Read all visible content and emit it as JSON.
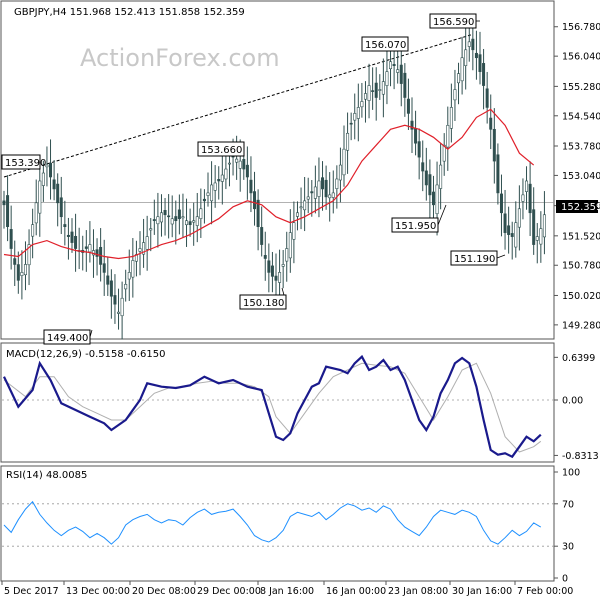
{
  "header": {
    "title": "GBPJPY,H4  151.968 152.413 151.858 152.359",
    "watermark": "ActionForex.com"
  },
  "chart_data": {
    "type": "candlestick",
    "symbol": "GBPJPY",
    "timeframe": "H4",
    "ohlc": {
      "open": 151.968,
      "high": 152.413,
      "low": 151.858,
      "close": 152.359
    },
    "last_price_label": "152.359",
    "price_axis": {
      "ticks": [
        156.78,
        156.04,
        155.28,
        154.54,
        153.78,
        153.04,
        152.28,
        151.52,
        150.78,
        150.02,
        149.28
      ],
      "tick_labels": [
        "156.780",
        "156.040",
        "155.280",
        "154.540",
        "153.780",
        "153.040",
        "152.280",
        "151.520",
        "150.780",
        "150.020",
        "149.280"
      ],
      "ylim": [
        149.0,
        157.0
      ]
    },
    "x_axis_labels": [
      "5 Dec 2017",
      "13 Dec 00:00",
      "20 Dec 08:00",
      "29 Dec 00:00",
      "8 Jan 16:00",
      "16 Jan 00:00",
      "23 Jan 08:00",
      "30 Jan 16:00",
      "7 Feb 00:00"
    ],
    "annotations": [
      "153.390",
      "153.660",
      "150.180",
      "149.400",
      "156.070",
      "156.590",
      "151.950",
      "151.190"
    ],
    "close_path": [
      [
        0,
        152.3
      ],
      [
        2,
        151.2
      ],
      [
        4,
        150.4
      ],
      [
        6,
        150.8
      ],
      [
        8,
        151.8
      ],
      [
        10,
        152.9
      ],
      [
        12,
        153.3
      ],
      [
        14,
        152.7
      ],
      [
        16,
        152.0
      ],
      [
        18,
        151.5
      ],
      [
        20,
        151.2
      ],
      [
        22,
        151.1
      ],
      [
        24,
        151.3
      ],
      [
        26,
        151.0
      ],
      [
        28,
        150.6
      ],
      [
        30,
        150.0
      ],
      [
        32,
        149.6
      ],
      [
        34,
        150.3
      ],
      [
        36,
        150.9
      ],
      [
        38,
        151.2
      ],
      [
        40,
        151.5
      ],
      [
        42,
        151.9
      ],
      [
        44,
        152.1
      ],
      [
        46,
        152.0
      ],
      [
        48,
        151.9
      ],
      [
        50,
        152.0
      ],
      [
        52,
        151.8
      ],
      [
        54,
        152.0
      ],
      [
        56,
        152.4
      ],
      [
        58,
        152.8
      ],
      [
        60,
        152.9
      ],
      [
        62,
        153.2
      ],
      [
        64,
        153.5
      ],
      [
        66,
        153.4
      ],
      [
        68,
        153.0
      ],
      [
        70,
        152.2
      ],
      [
        72,
        151.3
      ],
      [
        74,
        150.6
      ],
      [
        76,
        150.4
      ],
      [
        78,
        150.8
      ],
      [
        80,
        151.6
      ],
      [
        82,
        152.1
      ],
      [
        84,
        152.4
      ],
      [
        86,
        152.6
      ],
      [
        88,
        152.9
      ],
      [
        90,
        152.5
      ],
      [
        92,
        152.6
      ],
      [
        94,
        153.3
      ],
      [
        96,
        154.1
      ],
      [
        98,
        154.6
      ],
      [
        100,
        154.9
      ],
      [
        102,
        155.3
      ],
      [
        104,
        155.0
      ],
      [
        106,
        155.4
      ],
      [
        108,
        155.9
      ],
      [
        110,
        155.7
      ],
      [
        112,
        155.0
      ],
      [
        114,
        154.2
      ],
      [
        116,
        153.5
      ],
      [
        118,
        152.8
      ],
      [
        120,
        152.3
      ],
      [
        122,
        153.3
      ],
      [
        124,
        154.3
      ],
      [
        126,
        155.2
      ],
      [
        128,
        156.0
      ],
      [
        130,
        156.4
      ],
      [
        132,
        156.0
      ],
      [
        134,
        155.3
      ],
      [
        136,
        154.2
      ],
      [
        138,
        152.6
      ],
      [
        140,
        151.6
      ],
      [
        142,
        151.5
      ],
      [
        144,
        152.2
      ],
      [
        146,
        152.9
      ],
      [
        148,
        151.3
      ],
      [
        150,
        151.7
      ],
      [
        152,
        152.4
      ]
    ],
    "moving_average_path": [
      [
        0,
        151.05
      ],
      [
        4,
        151.0
      ],
      [
        8,
        151.3
      ],
      [
        12,
        151.4
      ],
      [
        16,
        151.25
      ],
      [
        20,
        151.15
      ],
      [
        24,
        151.1
      ],
      [
        28,
        151.0
      ],
      [
        32,
        150.95
      ],
      [
        36,
        151.0
      ],
      [
        40,
        151.15
      ],
      [
        44,
        151.3
      ],
      [
        48,
        151.4
      ],
      [
        52,
        151.55
      ],
      [
        56,
        151.75
      ],
      [
        60,
        151.95
      ],
      [
        64,
        152.25
      ],
      [
        68,
        152.4
      ],
      [
        72,
        152.3
      ],
      [
        76,
        152.0
      ],
      [
        80,
        151.85
      ],
      [
        84,
        152.0
      ],
      [
        88,
        152.2
      ],
      [
        92,
        152.4
      ],
      [
        96,
        152.8
      ],
      [
        100,
        153.4
      ],
      [
        104,
        153.8
      ],
      [
        108,
        154.2
      ],
      [
        112,
        154.3
      ],
      [
        116,
        154.2
      ],
      [
        120,
        154.0
      ],
      [
        124,
        153.7
      ],
      [
        128,
        154.0
      ],
      [
        132,
        154.5
      ],
      [
        136,
        154.7
      ],
      [
        140,
        154.3
      ],
      [
        144,
        153.6
      ],
      [
        148,
        153.3
      ]
    ],
    "trendline": {
      "from": [
        0,
        153.0
      ],
      "to": [
        131,
        156.59
      ]
    },
    "macd": {
      "label": "MACD(12,26,9) -0.5158 -0.6150",
      "params": "12,26,9",
      "macd_value": -0.5158,
      "signal_value": -0.615,
      "axis_labels": [
        "0.6399",
        "0.00",
        "-0.8313"
      ],
      "ylim": [
        -0.9,
        0.75
      ],
      "macd_path": [
        [
          0,
          0.35
        ],
        [
          4,
          -0.1
        ],
        [
          8,
          0.15
        ],
        [
          10,
          0.55
        ],
        [
          13,
          0.3
        ],
        [
          16,
          -0.05
        ],
        [
          20,
          -0.15
        ],
        [
          24,
          -0.25
        ],
        [
          28,
          -0.35
        ],
        [
          30,
          -0.45
        ],
        [
          34,
          -0.3
        ],
        [
          38,
          0.0
        ],
        [
          40,
          0.25
        ],
        [
          44,
          0.2
        ],
        [
          48,
          0.18
        ],
        [
          52,
          0.22
        ],
        [
          56,
          0.35
        ],
        [
          60,
          0.25
        ],
        [
          64,
          0.3
        ],
        [
          68,
          0.2
        ],
        [
          72,
          0.15
        ],
        [
          74,
          -0.2
        ],
        [
          76,
          -0.55
        ],
        [
          78,
          -0.6
        ],
        [
          80,
          -0.5
        ],
        [
          82,
          -0.2
        ],
        [
          86,
          0.2
        ],
        [
          88,
          0.25
        ],
        [
          90,
          0.5
        ],
        [
          94,
          0.45
        ],
        [
          96,
          0.4
        ],
        [
          98,
          0.55
        ],
        [
          100,
          0.65
        ],
        [
          102,
          0.45
        ],
        [
          104,
          0.5
        ],
        [
          106,
          0.6
        ],
        [
          108,
          0.45
        ],
        [
          110,
          0.5
        ],
        [
          112,
          0.3
        ],
        [
          114,
          0.0
        ],
        [
          116,
          -0.3
        ],
        [
          118,
          -0.45
        ],
        [
          120,
          -0.25
        ],
        [
          122,
          0.1
        ],
        [
          124,
          0.3
        ],
        [
          126,
          0.55
        ],
        [
          128,
          0.63
        ],
        [
          130,
          0.55
        ],
        [
          132,
          0.2
        ],
        [
          134,
          -0.3
        ],
        [
          136,
          -0.75
        ],
        [
          138,
          -0.82
        ],
        [
          140,
          -0.8
        ],
        [
          142,
          -0.85
        ],
        [
          144,
          -0.7
        ],
        [
          146,
          -0.55
        ],
        [
          148,
          -0.62
        ],
        [
          150,
          -0.52
        ]
      ],
      "signal_path": [
        [
          0,
          0.3
        ],
        [
          6,
          0.05
        ],
        [
          10,
          0.35
        ],
        [
          14,
          0.35
        ],
        [
          18,
          0.05
        ],
        [
          22,
          -0.1
        ],
        [
          26,
          -0.2
        ],
        [
          30,
          -0.3
        ],
        [
          34,
          -0.3
        ],
        [
          38,
          -0.1
        ],
        [
          42,
          0.1
        ],
        [
          46,
          0.18
        ],
        [
          50,
          0.2
        ],
        [
          54,
          0.25
        ],
        [
          58,
          0.28
        ],
        [
          62,
          0.25
        ],
        [
          66,
          0.25
        ],
        [
          70,
          0.2
        ],
        [
          74,
          0.05
        ],
        [
          76,
          -0.25
        ],
        [
          80,
          -0.5
        ],
        [
          84,
          -0.2
        ],
        [
          88,
          0.1
        ],
        [
          92,
          0.35
        ],
        [
          96,
          0.45
        ],
        [
          100,
          0.55
        ],
        [
          104,
          0.52
        ],
        [
          108,
          0.5
        ],
        [
          112,
          0.4
        ],
        [
          116,
          0.05
        ],
        [
          120,
          -0.3
        ],
        [
          124,
          0.05
        ],
        [
          128,
          0.45
        ],
        [
          132,
          0.55
        ],
        [
          136,
          0.1
        ],
        [
          140,
          -0.55
        ],
        [
          144,
          -0.78
        ],
        [
          148,
          -0.7
        ],
        [
          150,
          -0.62
        ]
      ]
    },
    "rsi": {
      "label": "RSI(14) 48.0085",
      "period": 14,
      "value": 48.0085,
      "axis_labels": [
        "100",
        "70",
        "30",
        "0"
      ],
      "levels": [
        70,
        30
      ],
      "ylim": [
        0,
        100
      ],
      "path": [
        [
          0,
          50
        ],
        [
          2,
          43
        ],
        [
          4,
          55
        ],
        [
          6,
          65
        ],
        [
          8,
          72
        ],
        [
          10,
          60
        ],
        [
          12,
          52
        ],
        [
          14,
          45
        ],
        [
          16,
          40
        ],
        [
          18,
          45
        ],
        [
          20,
          48
        ],
        [
          22,
          44
        ],
        [
          24,
          38
        ],
        [
          26,
          42
        ],
        [
          28,
          38
        ],
        [
          30,
          32
        ],
        [
          32,
          38
        ],
        [
          34,
          50
        ],
        [
          36,
          55
        ],
        [
          38,
          58
        ],
        [
          40,
          60
        ],
        [
          42,
          55
        ],
        [
          44,
          52
        ],
        [
          46,
          55
        ],
        [
          48,
          54
        ],
        [
          50,
          50
        ],
        [
          52,
          57
        ],
        [
          54,
          62
        ],
        [
          56,
          65
        ],
        [
          58,
          60
        ],
        [
          60,
          62
        ],
        [
          62,
          63
        ],
        [
          64,
          65
        ],
        [
          66,
          58
        ],
        [
          68,
          50
        ],
        [
          70,
          40
        ],
        [
          72,
          36
        ],
        [
          74,
          34
        ],
        [
          76,
          38
        ],
        [
          78,
          45
        ],
        [
          80,
          58
        ],
        [
          82,
          62
        ],
        [
          84,
          60
        ],
        [
          86,
          58
        ],
        [
          88,
          62
        ],
        [
          90,
          55
        ],
        [
          92,
          60
        ],
        [
          94,
          66
        ],
        [
          96,
          70
        ],
        [
          98,
          68
        ],
        [
          100,
          64
        ],
        [
          102,
          66
        ],
        [
          104,
          62
        ],
        [
          106,
          68
        ],
        [
          108,
          65
        ],
        [
          110,
          55
        ],
        [
          112,
          48
        ],
        [
          114,
          44
        ],
        [
          116,
          40
        ],
        [
          118,
          48
        ],
        [
          120,
          58
        ],
        [
          122,
          64
        ],
        [
          124,
          62
        ],
        [
          126,
          60
        ],
        [
          128,
          64
        ],
        [
          130,
          62
        ],
        [
          132,
          58
        ],
        [
          134,
          45
        ],
        [
          136,
          35
        ],
        [
          138,
          32
        ],
        [
          140,
          38
        ],
        [
          142,
          45
        ],
        [
          144,
          40
        ],
        [
          146,
          44
        ],
        [
          148,
          52
        ],
        [
          150,
          48
        ]
      ]
    }
  },
  "colors": {
    "bull_candle": "#2f4f4f",
    "bear_candle": "#2f4f4f",
    "moving_average": "#e0202a",
    "macd_line": "#1a1a8c",
    "macd_signal": "#b0b0b0",
    "rsi_line": "#1e90ff",
    "grid_dashed": "#999999",
    "frame": "#555555"
  }
}
